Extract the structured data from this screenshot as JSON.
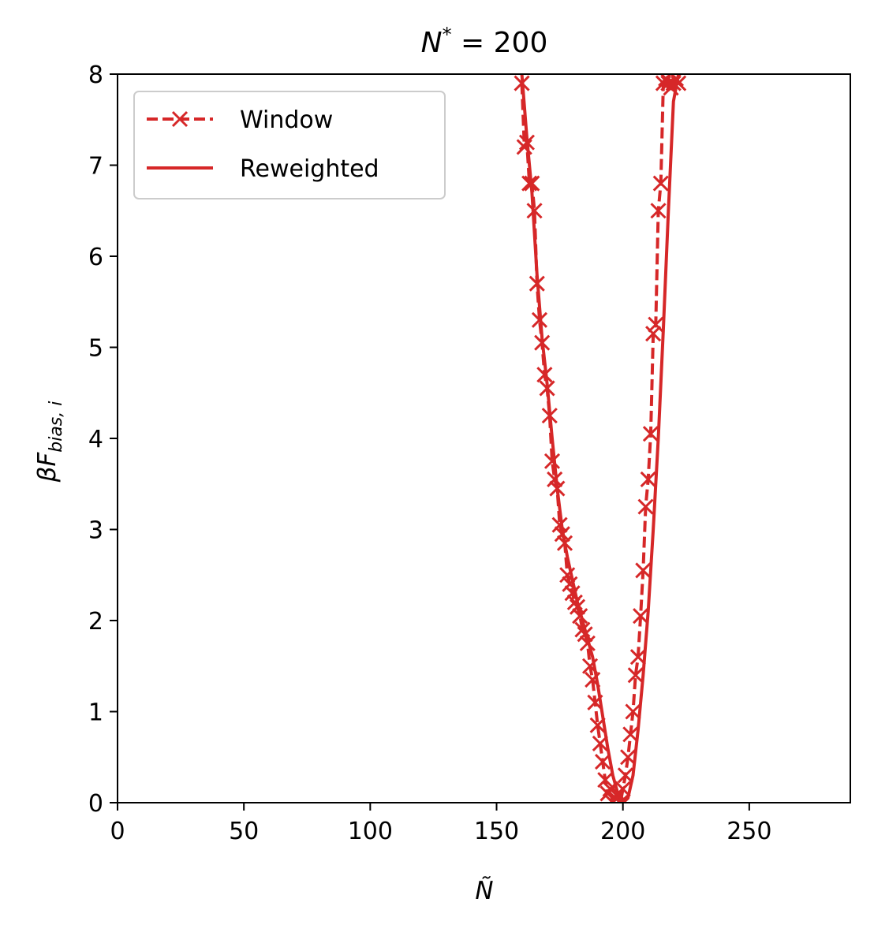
{
  "chart_data": {
    "type": "line",
    "title_prefix": "N",
    "title_sup": "*",
    "title_suffix": " = 200",
    "xlabel": "Ñ",
    "ylabel_main": "βF",
    "ylabel_sub": "bias, i",
    "xlim": [
      0,
      290
    ],
    "ylim": [
      0,
      8
    ],
    "xticks": [
      0,
      50,
      100,
      150,
      200,
      250
    ],
    "yticks": [
      0,
      1,
      2,
      3,
      4,
      5,
      6,
      7,
      8
    ],
    "grid": false,
    "legend_position": "top-left",
    "color": "#d62728",
    "series": [
      {
        "name": "Window",
        "style": "dashed-x",
        "x": [
          160,
          161,
          162,
          163,
          164,
          165,
          166,
          167,
          168,
          169,
          170,
          171,
          172,
          173,
          174,
          175,
          176,
          177,
          178,
          179,
          180,
          181,
          182,
          183,
          184,
          185,
          186,
          187,
          188,
          189,
          190,
          191,
          192,
          193,
          194,
          195,
          196,
          197,
          198,
          199,
          200,
          201,
          202,
          203,
          204,
          205,
          206,
          207,
          208,
          209,
          210,
          211,
          212,
          213,
          214,
          215,
          216,
          217,
          218,
          219,
          220,
          221,
          222
        ],
        "y": [
          7.9,
          7.2,
          7.25,
          6.8,
          6.8,
          6.5,
          5.7,
          5.3,
          5.05,
          4.7,
          4.55,
          4.25,
          3.75,
          3.55,
          3.45,
          3.05,
          2.95,
          2.85,
          2.5,
          2.4,
          2.3,
          2.2,
          2.15,
          2.05,
          1.9,
          1.85,
          1.75,
          1.5,
          1.35,
          1.1,
          0.85,
          0.65,
          0.45,
          0.25,
          0.1,
          0.15,
          0.0,
          0.05,
          0.1,
          0.0,
          0.15,
          0.3,
          0.5,
          0.75,
          1.0,
          1.4,
          1.6,
          2.05,
          2.55,
          3.25,
          3.55,
          4.05,
          5.15,
          5.25,
          6.5,
          6.8,
          7.9,
          7.95,
          7.9,
          7.85,
          7.9,
          7.95,
          7.9
        ]
      },
      {
        "name": "Reweighted",
        "style": "solid",
        "x": [
          160,
          162,
          164,
          166,
          168,
          170,
          172,
          174,
          176,
          178,
          180,
          182,
          184,
          186,
          188,
          190,
          192,
          194,
          196,
          198,
          200,
          202,
          204,
          206,
          208,
          210,
          212,
          214,
          216,
          218,
          220,
          222
        ],
        "y": [
          8.0,
          7.3,
          6.7,
          5.8,
          5.1,
          4.6,
          4.0,
          3.45,
          3.0,
          2.7,
          2.45,
          2.2,
          2.0,
          1.8,
          1.6,
          1.3,
          0.95,
          0.6,
          0.3,
          0.1,
          0.0,
          0.05,
          0.3,
          0.8,
          1.4,
          2.1,
          3.0,
          4.0,
          5.2,
          6.5,
          7.7,
          8.0
        ]
      }
    ]
  }
}
